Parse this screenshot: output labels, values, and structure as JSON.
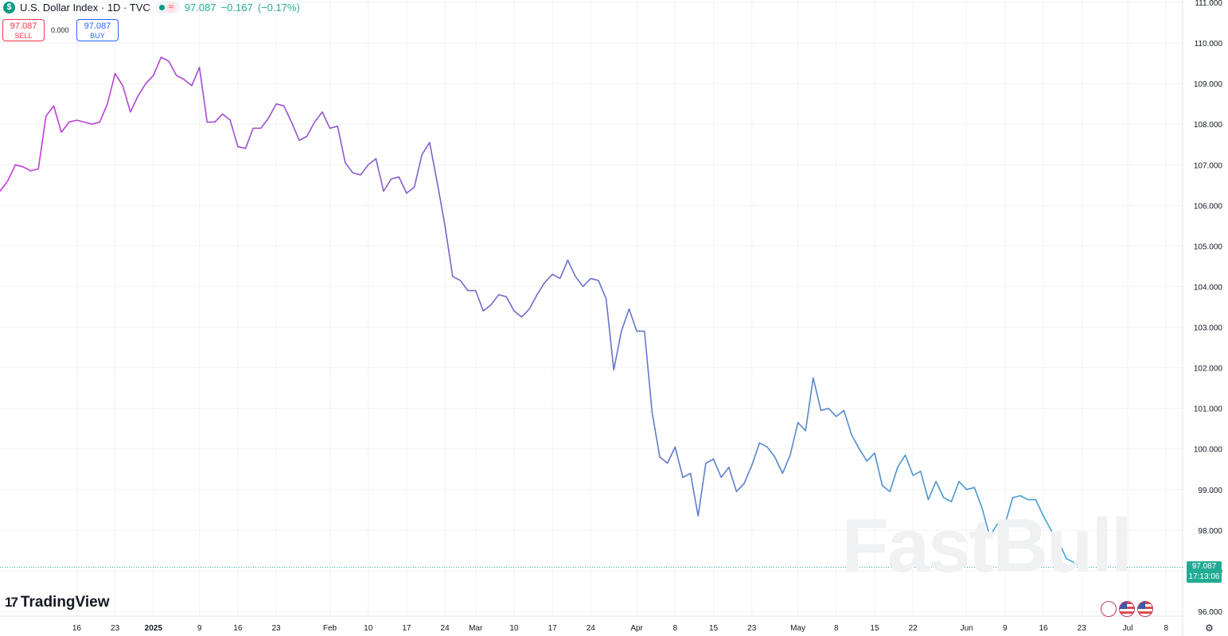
{
  "header": {
    "symbol_icon": "$",
    "title": "U.S. Dollar Index · 1D · TVC",
    "approx_symbol": "≈",
    "last_price": "97.087",
    "change": "−0.167",
    "change_pct": "(−0.17%)"
  },
  "trade": {
    "sell_price": "97.087",
    "sell_label": "SELL",
    "spread": "0.000",
    "buy_price": "97.087",
    "buy_label": "BUY"
  },
  "price_tag": {
    "price": "97.087",
    "countdown": "17:13:06"
  },
  "watermark": "FastBull",
  "branding": {
    "logo_mark": "17",
    "logo_text": "TradingView"
  },
  "colors": {
    "line_start": "#c837d9",
    "line_mid": "#6d6cc8",
    "line_end": "#3ea6d3",
    "last_price": "#22ab94",
    "sell": "#f23645",
    "buy": "#2962ff"
  },
  "chart_data": {
    "type": "line",
    "title": "U.S. Dollar Index · 1D · TVC",
    "xlabel": "",
    "ylabel": "",
    "ylim": [
      96,
      111
    ],
    "grid": true,
    "y_ticks": [
      "96.000",
      "97.000",
      "98.000",
      "99.000",
      "100.000",
      "101.000",
      "102.000",
      "103.000",
      "104.000",
      "105.000",
      "106.000",
      "107.000",
      "108.000",
      "109.000",
      "110.000",
      "111.000"
    ],
    "x_ticks": [
      {
        "label": "16",
        "x": 10
      },
      {
        "label": "23",
        "x": 15
      },
      {
        "label": "2025",
        "x": 20,
        "bold": true
      },
      {
        "label": "9",
        "x": 26
      },
      {
        "label": "16",
        "x": 31
      },
      {
        "label": "23",
        "x": 36
      },
      {
        "label": "Feb",
        "x": 43
      },
      {
        "label": "10",
        "x": 48
      },
      {
        "label": "17",
        "x": 53
      },
      {
        "label": "24",
        "x": 58
      },
      {
        "label": "Mar",
        "x": 62
      },
      {
        "label": "10",
        "x": 67
      },
      {
        "label": "17",
        "x": 72
      },
      {
        "label": "24",
        "x": 77
      },
      {
        "label": "Apr",
        "x": 83
      },
      {
        "label": "8",
        "x": 88
      },
      {
        "label": "15",
        "x": 93
      },
      {
        "label": "23",
        "x": 98
      },
      {
        "label": "May",
        "x": 104
      },
      {
        "label": "8",
        "x": 109
      },
      {
        "label": "15",
        "x": 114
      },
      {
        "label": "22",
        "x": 119
      },
      {
        "label": "Jun",
        "x": 126
      },
      {
        "label": "9",
        "x": 131
      },
      {
        "label": "16",
        "x": 136
      },
      {
        "label": "23",
        "x": 141
      },
      {
        "label": "Jul",
        "x": 147
      },
      {
        "label": "8",
        "x": 152
      }
    ],
    "series": [
      {
        "values": [
          106.35,
          106.6,
          107.0,
          106.95,
          106.85,
          106.9,
          108.2,
          108.45,
          107.8,
          108.05,
          108.1,
          108.05,
          108.0,
          108.05,
          108.5,
          109.25,
          108.95,
          108.3,
          108.7,
          109.0,
          109.2,
          109.65,
          109.55,
          109.2,
          109.1,
          108.95,
          109.4,
          108.05,
          108.05,
          108.25,
          108.1,
          107.45,
          107.4,
          107.9,
          107.9,
          108.15,
          108.5,
          108.45,
          108.05,
          107.6,
          107.7,
          108.05,
          108.3,
          107.9,
          107.95,
          107.05,
          106.8,
          106.75,
          107.0,
          107.15,
          106.35,
          106.65,
          106.7,
          106.3,
          106.45,
          107.25,
          107.55,
          106.55,
          105.5,
          104.25,
          104.15,
          103.9,
          103.9,
          103.4,
          103.55,
          103.8,
          103.75,
          103.4,
          103.25,
          103.45,
          103.8,
          104.1,
          104.3,
          104.2,
          104.65,
          104.25,
          104.0,
          104.2,
          104.15,
          103.7,
          101.95,
          102.9,
          103.45,
          102.9,
          102.9,
          100.9,
          99.8,
          99.65,
          100.05,
          99.3,
          99.4,
          98.35,
          99.65,
          99.75,
          99.3,
          99.55,
          98.95,
          99.15,
          99.6,
          100.15,
          100.05,
          99.8,
          99.4,
          99.85,
          100.65,
          100.45,
          101.75,
          100.95,
          101.0,
          100.8,
          100.95,
          100.35,
          100.0,
          99.7,
          99.9,
          99.1,
          98.95,
          99.55,
          99.85,
          99.35,
          99.45,
          98.75,
          99.2,
          98.8,
          98.7,
          99.2,
          99.0,
          99.05,
          98.55,
          97.85,
          98.15,
          98.15,
          98.8,
          98.85,
          98.75,
          98.75,
          98.35,
          98.0,
          97.7,
          97.3,
          97.2,
          97.09
        ],
        "x_start": 0,
        "x_step": 1
      }
    ],
    "last_value": 97.087
  }
}
